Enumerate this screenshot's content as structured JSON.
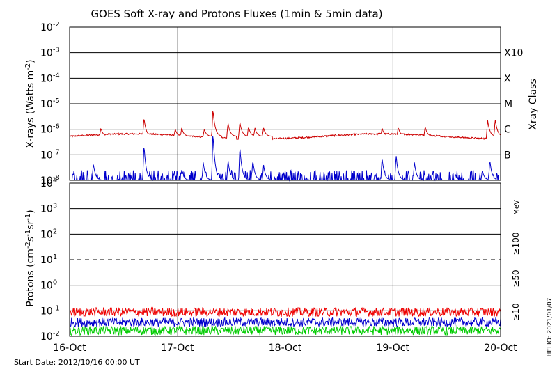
{
  "chart_data": [
    {
      "type": "line",
      "title": "GOES Soft X-ray and Protons Fluxes   (1min & 5min data)",
      "ylabel_main": "X-rays (Watts m",
      "ylabel_sup": "-2",
      "ylabel_close": ")",
      "yscale": "log",
      "ylim_exp": [
        -8,
        -2
      ],
      "x_tick_labels": [
        "16-Oct",
        "17-Oct",
        "18-Oct",
        "19-Oct",
        "20-Oct"
      ],
      "xlim_days": [
        0,
        4
      ],
      "right_axis_title": "Xray Class",
      "class_labels": [
        {
          "label": "X10",
          "exp": -3
        },
        {
          "label": "X",
          "exp": -4
        },
        {
          "label": "M",
          "exp": -5
        },
        {
          "label": "C",
          "exp": -6
        },
        {
          "label": "B",
          "exp": -7
        }
      ],
      "series": [
        {
          "color": "#cc0000",
          "baseline_exp": -6.28,
          "events": [
            {
              "day": 0.29,
              "peak_exp": -5.95
            },
            {
              "day": 0.69,
              "peak_exp": -5.55
            },
            {
              "day": 0.98,
              "peak_exp": -6.0
            },
            {
              "day": 1.04,
              "peak_exp": -5.95
            },
            {
              "day": 1.25,
              "peak_exp": -6.0
            },
            {
              "day": 1.33,
              "peak_exp": -5.2
            },
            {
              "day": 1.47,
              "peak_exp": -5.75
            },
            {
              "day": 1.58,
              "peak_exp": -5.7
            },
            {
              "day": 1.66,
              "peak_exp": -5.9
            },
            {
              "day": 1.72,
              "peak_exp": -5.95
            },
            {
              "day": 1.8,
              "peak_exp": -5.95
            },
            {
              "day": 2.9,
              "peak_exp": -5.95
            },
            {
              "day": 3.05,
              "peak_exp": -5.92
            },
            {
              "day": 3.3,
              "peak_exp": -5.9
            },
            {
              "day": 3.88,
              "peak_exp": -5.65
            },
            {
              "day": 3.95,
              "peak_exp": -5.6
            }
          ]
        },
        {
          "color": "#0000cc",
          "baseline_exp": -8.0,
          "events": [
            {
              "day": 0.22,
              "peak_exp": -7.35
            },
            {
              "day": 0.45,
              "peak_exp": -7.95
            },
            {
              "day": 0.69,
              "peak_exp": -6.6
            },
            {
              "day": 1.04,
              "peak_exp": -7.6
            },
            {
              "day": 1.24,
              "peak_exp": -7.3
            },
            {
              "day": 1.33,
              "peak_exp": -6.1
            },
            {
              "day": 1.47,
              "peak_exp": -7.2
            },
            {
              "day": 1.58,
              "peak_exp": -6.65
            },
            {
              "day": 1.7,
              "peak_exp": -7.2
            },
            {
              "day": 1.8,
              "peak_exp": -7.4
            },
            {
              "day": 2.9,
              "peak_exp": -7.1
            },
            {
              "day": 3.03,
              "peak_exp": -7.0
            },
            {
              "day": 3.2,
              "peak_exp": -7.3
            },
            {
              "day": 3.83,
              "peak_exp": -7.6
            },
            {
              "day": 3.9,
              "peak_exp": -7.2
            }
          ]
        }
      ]
    },
    {
      "type": "line",
      "ylabel_main": "Protons (cm",
      "ylabel_sup1": "-2",
      "ylabel_mid": "s",
      "ylabel_sup2": "-1",
      "ylabel_mid2": "sr",
      "ylabel_sup3": "-1",
      "ylabel_close": ")",
      "yscale": "log",
      "ylim_exp": [
        -2,
        4
      ],
      "y_tick_labels": [
        {
          "base": "10",
          "sup": "4",
          "exp": 4
        },
        {
          "base": "10",
          "sup": "3",
          "exp": 3
        },
        {
          "base": "10",
          "sup": "2",
          "exp": 2
        },
        {
          "base": "10",
          "sup": "1",
          "exp": 1
        },
        {
          "base": "10",
          "sup": "0",
          "exp": 0
        },
        {
          "base": "10",
          "sup": "-1",
          "exp": -1
        },
        {
          "base": "10",
          "sup": "-2",
          "exp": -2
        }
      ],
      "x_tick_labels": [
        "16-Oct",
        "17-Oct",
        "18-Oct",
        "19-Oct",
        "20-Oct"
      ],
      "threshold_exp": 1,
      "energy_unit": "MeV",
      "series": [
        {
          "name": "≥100",
          "color": "#00cc00",
          "level_exp": -1.78
        },
        {
          "name": "≥50",
          "color": "#0000cc",
          "level_exp": -1.45
        },
        {
          "name": "≥10",
          "color": "#ee0000",
          "level_exp": -1.05
        }
      ]
    }
  ],
  "footer": {
    "start_date": "Start Date: 2012/10/16 00:00 UT",
    "credit": "HELIO: 2021/01/07"
  }
}
